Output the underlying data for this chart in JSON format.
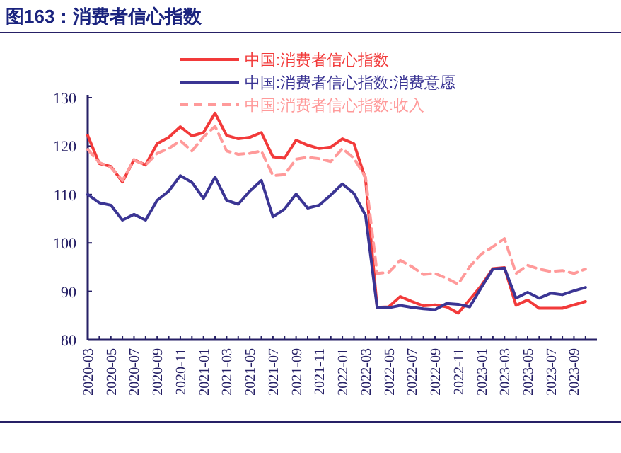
{
  "chart_data": {
    "type": "line",
    "title": "图163：消费者信心指数",
    "categories": [
      "2020-03",
      null,
      "2020-05",
      null,
      "2020-07",
      null,
      "2020-09",
      null,
      "2020-11",
      null,
      "2021-01",
      null,
      "2021-03",
      null,
      "2021-05",
      null,
      "2021-07",
      null,
      "2021-09",
      null,
      "2021-11",
      null,
      "2022-01",
      null,
      "2022-03",
      null,
      "2022-05",
      null,
      "2022-07",
      null,
      "2022-09",
      null,
      "2022-11",
      null,
      "2023-01",
      null,
      "2023-03",
      null,
      "2023-05",
      null,
      "2023-07",
      null,
      "2023-09",
      null
    ],
    "series": [
      {
        "name": "中国:消费者信心指数",
        "color": "#f23a3a",
        "line_style": "solid",
        "values": [
          122.2,
          116.4,
          115.8,
          112.6,
          117.2,
          116.1,
          120.5,
          121.8,
          124.0,
          122.1,
          122.8,
          126.8,
          122.2,
          121.5,
          121.8,
          122.8,
          117.8,
          117.5,
          121.2,
          120.2,
          119.5,
          119.8,
          121.5,
          120.5,
          113.2,
          86.7,
          86.8,
          88.9,
          87.9,
          87.0,
          87.2,
          86.8,
          85.5,
          88.3,
          91.2,
          94.7,
          94.9,
          87.1,
          88.2,
          86.5,
          86.5,
          86.5,
          87.2,
          87.9
        ]
      },
      {
        "name": "中国:消费者信心指数:消费意愿",
        "color": "#3b3594",
        "line_style": "solid",
        "values": [
          110.0,
          108.3,
          107.8,
          104.7,
          105.9,
          104.7,
          108.8,
          110.7,
          113.9,
          112.5,
          109.2,
          113.6,
          108.8,
          108.0,
          110.7,
          112.9,
          105.4,
          107.0,
          110.1,
          107.2,
          107.8,
          109.9,
          112.2,
          110.2,
          105.7,
          86.7,
          86.6,
          87.1,
          86.7,
          86.4,
          86.2,
          87.5,
          87.3,
          86.8,
          90.8,
          94.6,
          94.8,
          88.6,
          89.8,
          88.6,
          89.6,
          89.3,
          90.1,
          90.8
        ]
      },
      {
        "name": "中国:消费者信心指数:收入",
        "color": "#ff9a9a",
        "line_style": "dashed",
        "values": [
          119.3,
          116.6,
          115.6,
          112.9,
          117.1,
          116.1,
          118.5,
          119.5,
          121.1,
          119.0,
          121.9,
          124.1,
          119.0,
          118.3,
          118.5,
          119.0,
          113.9,
          114.1,
          117.3,
          117.7,
          117.4,
          116.8,
          119.5,
          117.5,
          113.6,
          93.7,
          93.9,
          96.4,
          95.1,
          93.5,
          93.7,
          92.7,
          91.5,
          95.1,
          97.7,
          99.2,
          100.9,
          93.7,
          95.4,
          94.6,
          94.1,
          94.3,
          93.7,
          94.6
        ]
      }
    ],
    "ylim": [
      80,
      130
    ],
    "yticks": [
      80,
      90,
      100,
      110,
      120,
      130
    ],
    "grid": false,
    "legend": "top"
  }
}
